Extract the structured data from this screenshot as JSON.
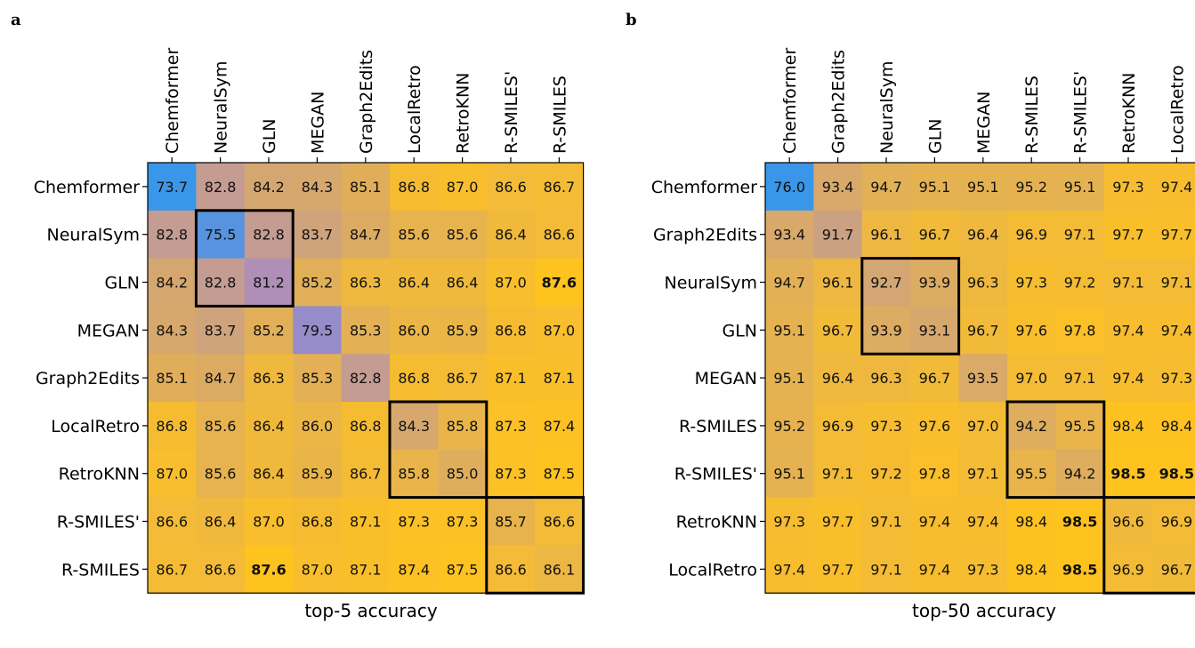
{
  "colors": {
    "low": "#3a96e8",
    "mid": "#a98ac4",
    "high": "#ffc31f",
    "bg": "#ffffff",
    "box": "#000000"
  },
  "chart_data": [
    {
      "type": "heatmap",
      "panel": "a",
      "title": "top-5 accuracy",
      "labels": [
        "Chemformer",
        "NeuralSym",
        "GLN",
        "MEGAN",
        "Graph2Edits",
        "LocalRetro",
        "RetroKNN",
        "R-SMILES'",
        "R-SMILES"
      ],
      "values": [
        [
          73.7,
          82.8,
          84.2,
          84.3,
          85.1,
          86.8,
          87.0,
          86.6,
          86.7
        ],
        [
          82.8,
          75.5,
          82.8,
          83.7,
          84.7,
          85.6,
          85.6,
          86.4,
          86.6
        ],
        [
          84.2,
          82.8,
          81.2,
          85.2,
          86.3,
          86.4,
          86.4,
          87.0,
          87.6
        ],
        [
          84.3,
          83.7,
          85.2,
          79.5,
          85.3,
          86.0,
          85.9,
          86.8,
          87.0
        ],
        [
          85.1,
          84.7,
          86.3,
          85.3,
          82.8,
          86.8,
          86.7,
          87.1,
          87.1
        ],
        [
          86.8,
          85.6,
          86.4,
          86.0,
          86.8,
          84.3,
          85.8,
          87.3,
          87.4
        ],
        [
          87.0,
          85.6,
          86.4,
          85.9,
          86.7,
          85.8,
          85.0,
          87.3,
          87.5
        ],
        [
          86.6,
          86.4,
          87.0,
          86.8,
          87.1,
          87.3,
          87.3,
          85.7,
          86.6
        ],
        [
          86.7,
          86.6,
          87.6,
          87.0,
          87.1,
          87.4,
          87.5,
          86.6,
          86.1
        ]
      ],
      "highlight_max": 87.6,
      "boxes": [
        [
          1,
          2
        ],
        [
          5,
          6
        ],
        [
          7,
          8
        ]
      ]
    },
    {
      "type": "heatmap",
      "panel": "b",
      "title": "top-50 accuracy",
      "labels": [
        "Chemformer",
        "Graph2Edits",
        "NeuralSym",
        "GLN",
        "MEGAN",
        "R-SMILES",
        "R-SMILES'",
        "RetroKNN",
        "LocalRetro"
      ],
      "values": [
        [
          76.0,
          93.4,
          94.7,
          95.1,
          95.1,
          95.2,
          95.1,
          97.3,
          97.4
        ],
        [
          93.4,
          91.7,
          96.1,
          96.7,
          96.4,
          96.9,
          97.1,
          97.7,
          97.7
        ],
        [
          94.7,
          96.1,
          92.7,
          93.9,
          96.3,
          97.3,
          97.2,
          97.1,
          97.1
        ],
        [
          95.1,
          96.7,
          93.9,
          93.1,
          96.7,
          97.6,
          97.8,
          97.4,
          97.4
        ],
        [
          95.1,
          96.4,
          96.3,
          96.7,
          93.5,
          97.0,
          97.1,
          97.4,
          97.3
        ],
        [
          95.2,
          96.9,
          97.3,
          97.6,
          97.0,
          94.2,
          95.5,
          98.4,
          98.4
        ],
        [
          95.1,
          97.1,
          97.2,
          97.8,
          97.1,
          95.5,
          94.2,
          98.5,
          98.5
        ],
        [
          97.3,
          97.7,
          97.1,
          97.4,
          97.4,
          98.4,
          98.5,
          96.6,
          96.9
        ],
        [
          97.4,
          97.7,
          97.1,
          97.4,
          97.3,
          98.4,
          98.5,
          96.9,
          96.7
        ]
      ],
      "highlight_max": 98.5,
      "boxes": [
        [
          2,
          3
        ],
        [
          5,
          6
        ],
        [
          7,
          8
        ]
      ]
    }
  ]
}
